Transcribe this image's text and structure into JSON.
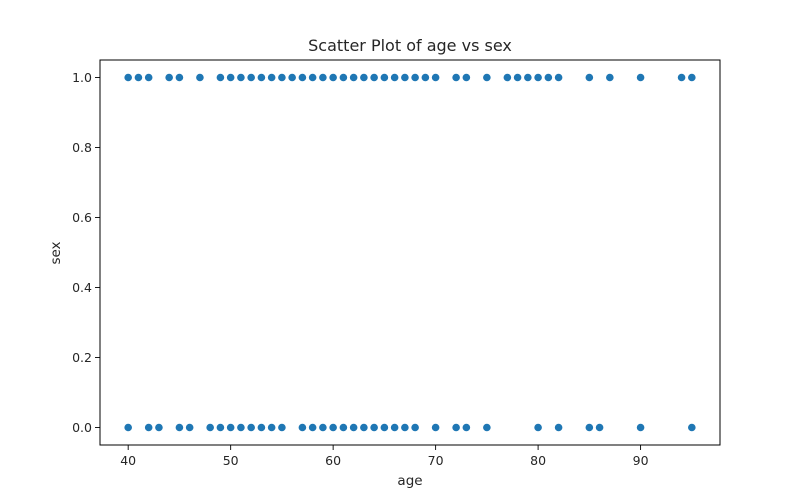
{
  "chart_data": {
    "type": "scatter",
    "title": "Scatter Plot of age vs sex",
    "xlabel": "age",
    "ylabel": "sex",
    "xlim": [
      37.25,
      97.75
    ],
    "ylim": [
      -0.05,
      1.05
    ],
    "xticks": [
      40,
      50,
      60,
      70,
      80,
      90
    ],
    "yticks": [
      0.0,
      0.2,
      0.4,
      0.6,
      0.8,
      1.0
    ],
    "xtick_labels": [
      "40",
      "50",
      "60",
      "70",
      "80",
      "90"
    ],
    "ytick_labels": [
      "0.0",
      "0.2",
      "0.4",
      "0.6",
      "0.8",
      "1.0"
    ],
    "grid": false,
    "marker_color": "#1f77b4",
    "series": [
      {
        "x": [
          40,
          41,
          42,
          44,
          45,
          47,
          49,
          50,
          51,
          52,
          53,
          54,
          55,
          56,
          57,
          58,
          59,
          60,
          61,
          62,
          63,
          64,
          65,
          66,
          67,
          68,
          69,
          70,
          72,
          73,
          75,
          77,
          78,
          79,
          80,
          81,
          82,
          85,
          87,
          90,
          94,
          95,
          40,
          42,
          43,
          45,
          46,
          48,
          49,
          50,
          51,
          52,
          53,
          54,
          55,
          57,
          58,
          59,
          60,
          61,
          62,
          63,
          64,
          65,
          66,
          67,
          68,
          70,
          72,
          73,
          75,
          80,
          82,
          85,
          86,
          90,
          95
        ],
        "y": [
          1,
          1,
          1,
          1,
          1,
          1,
          1,
          1,
          1,
          1,
          1,
          1,
          1,
          1,
          1,
          1,
          1,
          1,
          1,
          1,
          1,
          1,
          1,
          1,
          1,
          1,
          1,
          1,
          1,
          1,
          1,
          1,
          1,
          1,
          1,
          1,
          1,
          1,
          1,
          1,
          1,
          1,
          0,
          0,
          0,
          0,
          0,
          0,
          0,
          0,
          0,
          0,
          0,
          0,
          0,
          0,
          0,
          0,
          0,
          0,
          0,
          0,
          0,
          0,
          0,
          0,
          0,
          0,
          0,
          0,
          0,
          0,
          0,
          0,
          0,
          0,
          0
        ]
      }
    ]
  }
}
